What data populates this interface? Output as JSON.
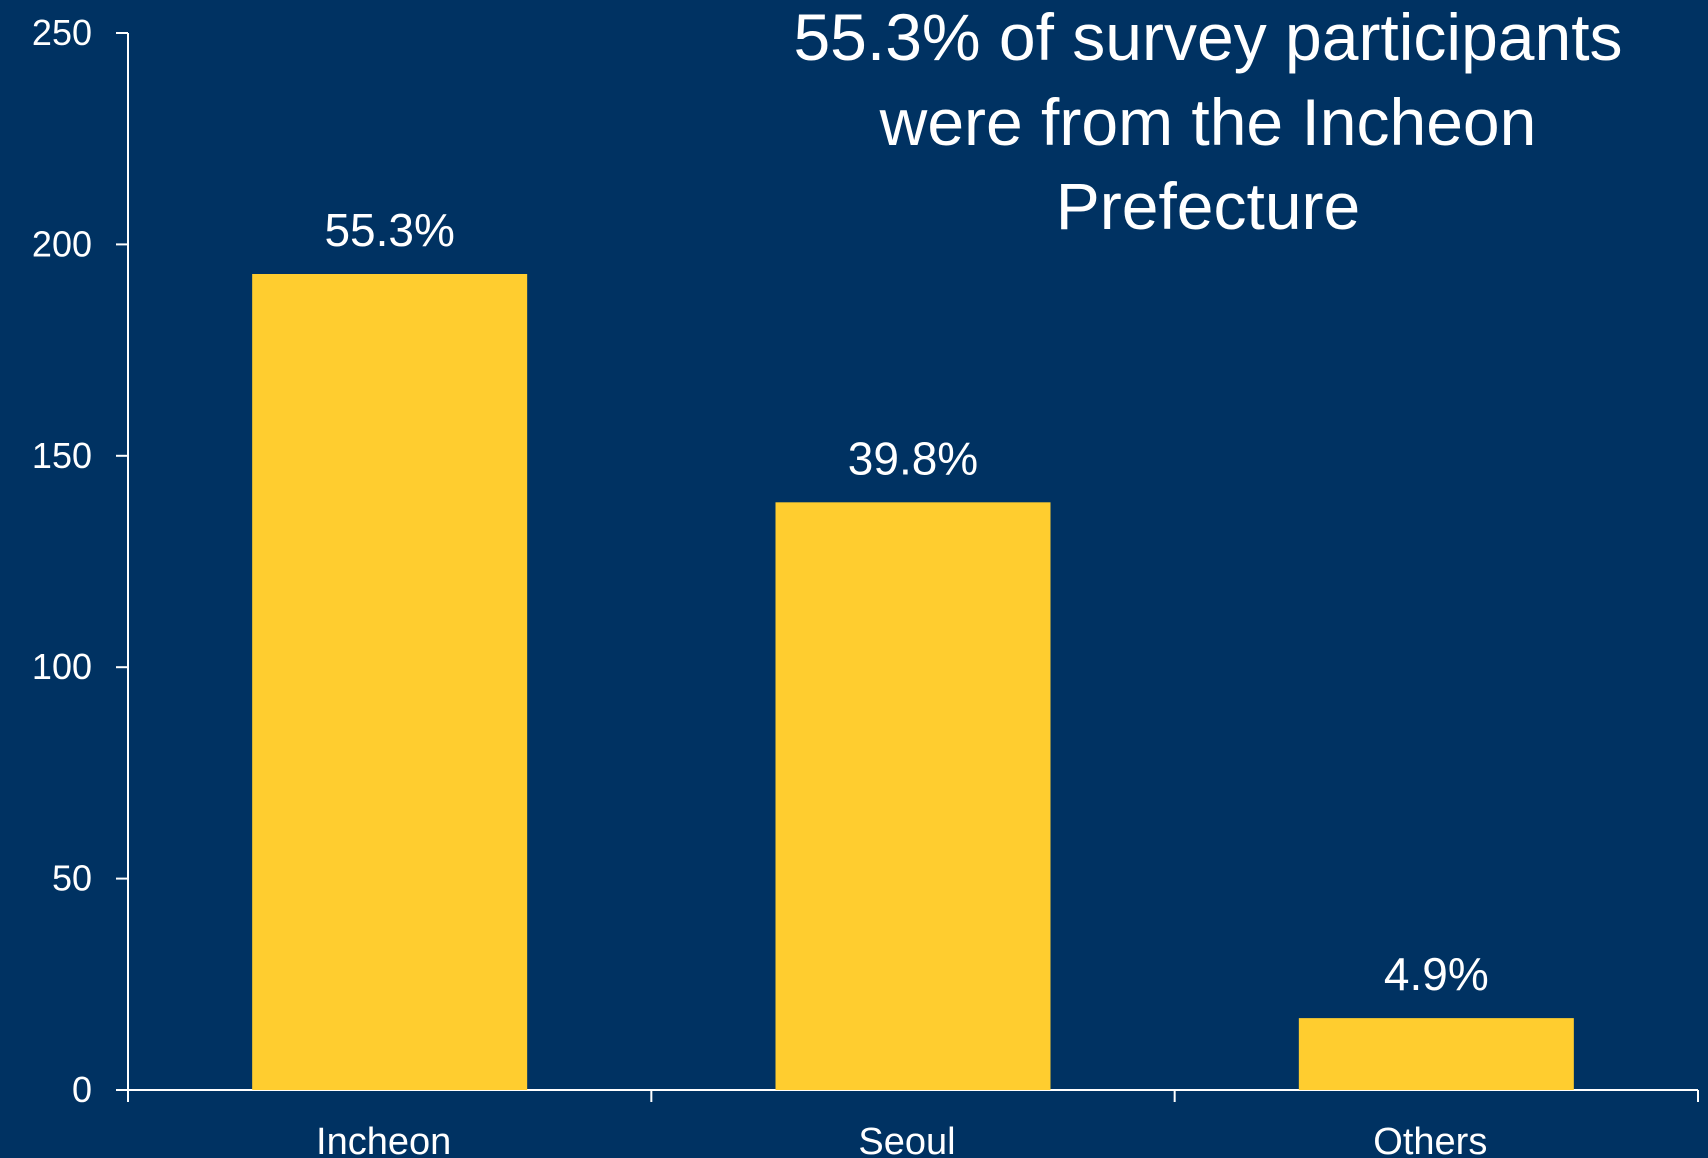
{
  "chart_data": {
    "type": "bar",
    "title_lines": [
      "55.3% of survey participants",
      "were from the Incheon",
      "Prefecture"
    ],
    "categories": [
      "Incheon",
      "Seoul",
      "Others"
    ],
    "values": [
      193,
      139,
      17
    ],
    "data_labels": [
      "55.3%",
      "39.8%",
      "4.9%"
    ],
    "ylim": [
      0,
      250
    ],
    "yticks": [
      0,
      50,
      100,
      150,
      200,
      250
    ],
    "xlabel": "",
    "ylabel": "",
    "grid": false,
    "legend": "none",
    "colors": {
      "background": "#003262",
      "bar": "#FFCD2F",
      "axis": "#FFFFFF",
      "text": "#FFFFFF"
    }
  }
}
